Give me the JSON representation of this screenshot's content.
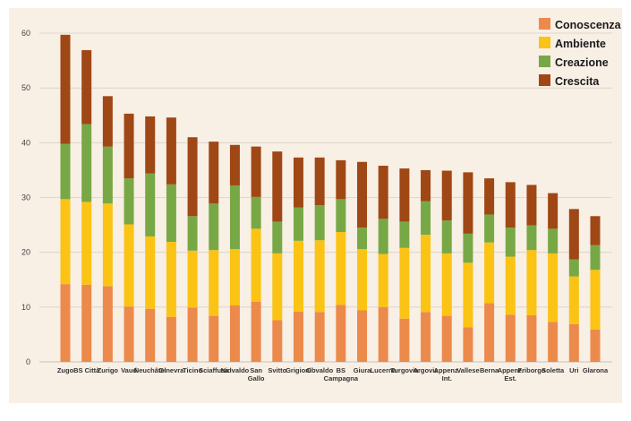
{
  "chart_data": {
    "type": "bar",
    "stacked": true,
    "title": "",
    "xlabel": "",
    "ylabel": "",
    "ylim": [
      0,
      60
    ],
    "yticks": [
      0,
      10,
      20,
      30,
      40,
      50,
      60
    ],
    "grid": true,
    "legend_position": "top-right",
    "categories": [
      "Zugo",
      "BS Città",
      "Zurigo",
      "Vaud",
      "Neuchâtel",
      "Ginevra",
      "Ticino",
      "Sciaffusa",
      "Nidvaldo",
      "San Gallo",
      "Svitto",
      "Grigioni",
      "Obvaldo",
      "BS Campagna",
      "Giura",
      "Lucerna",
      "Turgovia",
      "Argovia",
      "Appenz. Int.",
      "Vallese",
      "Berna",
      "Appenz. Est.",
      "Friborgo",
      "Soletta",
      "Uri",
      "Glarona"
    ],
    "series": [
      {
        "name": "Conoscenza",
        "color": "#ec8a4c",
        "values": [
          14.2,
          14.1,
          13.8,
          10.1,
          9.7,
          8.2,
          9.9,
          8.4,
          10.3,
          11.0,
          7.6,
          9.2,
          9.1,
          10.4,
          9.4,
          10.0,
          7.9,
          9.1,
          8.4,
          6.3,
          10.7,
          8.6,
          8.5,
          7.3,
          6.9,
          5.9
        ]
      },
      {
        "name": "Ambiente",
        "color": "#fbc314",
        "values": [
          15.5,
          15.1,
          15.1,
          15.0,
          13.2,
          13.7,
          10.4,
          12.0,
          10.3,
          13.3,
          12.2,
          12.9,
          13.1,
          13.3,
          11.2,
          9.7,
          12.9,
          14.1,
          11.4,
          11.8,
          11.1,
          10.6,
          11.9,
          12.5,
          8.7,
          10.9
        ]
      },
      {
        "name": "Creazione",
        "color": "#78a845",
        "values": [
          10.1,
          14.2,
          10.4,
          8.4,
          11.5,
          10.5,
          6.3,
          8.5,
          11.6,
          5.8,
          5.8,
          6.1,
          6.4,
          6.0,
          3.9,
          6.4,
          4.8,
          6.1,
          6.0,
          5.3,
          5.1,
          5.3,
          4.5,
          4.5,
          3.1,
          4.5
        ]
      },
      {
        "name": "Crescita",
        "color": "#a04716",
        "values": [
          19.9,
          13.5,
          9.2,
          11.8,
          10.4,
          12.2,
          14.4,
          11.3,
          7.4,
          9.2,
          12.8,
          9.1,
          8.7,
          7.1,
          12.0,
          9.7,
          9.7,
          5.7,
          9.1,
          11.2,
          6.6,
          8.3,
          7.4,
          6.5,
          9.2,
          5.3
        ]
      }
    ]
  }
}
